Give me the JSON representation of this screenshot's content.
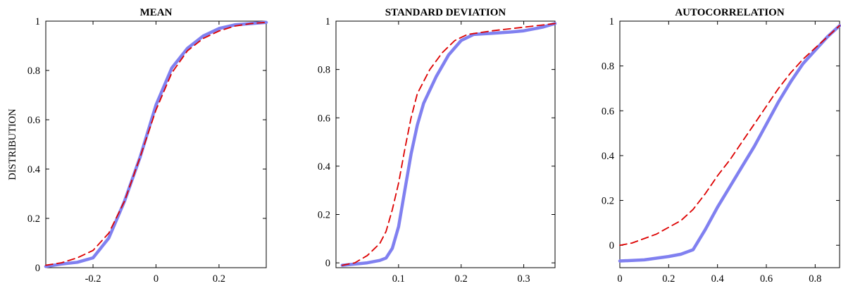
{
  "chart_data": [
    {
      "type": "line",
      "title": "MEAN",
      "xlabel": "",
      "ylabel": "DISTRIBUTION",
      "xlim": [
        -0.35,
        0.35
      ],
      "ylim": [
        0,
        1
      ],
      "xticks": [
        -0.2,
        0,
        0.2
      ],
      "xtick_labels": [
        "-0.2",
        "0",
        "0.2"
      ],
      "yticks": [
        0,
        0.2,
        0.4,
        0.6,
        0.8,
        1
      ],
      "ytick_labels": [
        "0",
        "0.2",
        "0.4",
        "0.6",
        "0.8",
        "1"
      ],
      "grid": false,
      "series": [
        {
          "style": "solid-thick",
          "color": "#8080f0",
          "points": [
            [
              -0.35,
              0.005
            ],
            [
              -0.3,
              0.015
            ],
            [
              -0.25,
              0.022
            ],
            [
              -0.2,
              0.04
            ],
            [
              -0.15,
              0.12
            ],
            [
              -0.1,
              0.27
            ],
            [
              -0.05,
              0.45
            ],
            [
              0,
              0.66
            ],
            [
              0.05,
              0.81
            ],
            [
              0.1,
              0.89
            ],
            [
              0.15,
              0.94
            ],
            [
              0.2,
              0.97
            ],
            [
              0.25,
              0.985
            ],
            [
              0.3,
              0.99
            ],
            [
              0.35,
              0.995
            ]
          ]
        },
        {
          "style": "dashed",
          "color": "#dd0000",
          "points": [
            [
              -0.35,
              0.01
            ],
            [
              -0.3,
              0.02
            ],
            [
              -0.25,
              0.04
            ],
            [
              -0.2,
              0.07
            ],
            [
              -0.15,
              0.14
            ],
            [
              -0.1,
              0.27
            ],
            [
              -0.05,
              0.45
            ],
            [
              0,
              0.64
            ],
            [
              0.05,
              0.79
            ],
            [
              0.1,
              0.88
            ],
            [
              0.15,
              0.93
            ],
            [
              0.2,
              0.96
            ],
            [
              0.25,
              0.98
            ],
            [
              0.3,
              0.99
            ],
            [
              0.35,
              0.995
            ]
          ]
        }
      ]
    },
    {
      "type": "line",
      "title": "STANDARD DEVIATION",
      "xlabel": "",
      "ylabel": "",
      "xlim": [
        0,
        0.35
      ],
      "ylim": [
        -0.02,
        1
      ],
      "xticks": [
        0.1,
        0.2,
        0.3
      ],
      "xtick_labels": [
        "0.1",
        "0.2",
        "0.3"
      ],
      "yticks": [
        0,
        0.2,
        0.4,
        0.6,
        0.8,
        1
      ],
      "ytick_labels": [
        "0",
        "0.2",
        "0.4",
        "0.6",
        "0.8",
        "1"
      ],
      "grid": false,
      "series": [
        {
          "style": "solid-thick",
          "color": "#8080f0",
          "points": [
            [
              0.01,
              -0.01
            ],
            [
              0.03,
              -0.005
            ],
            [
              0.05,
              0.0
            ],
            [
              0.07,
              0.01
            ],
            [
              0.08,
              0.02
            ],
            [
              0.09,
              0.06
            ],
            [
              0.1,
              0.15
            ],
            [
              0.11,
              0.3
            ],
            [
              0.12,
              0.45
            ],
            [
              0.13,
              0.57
            ],
            [
              0.14,
              0.66
            ],
            [
              0.16,
              0.77
            ],
            [
              0.18,
              0.86
            ],
            [
              0.2,
              0.92
            ],
            [
              0.22,
              0.945
            ],
            [
              0.25,
              0.95
            ],
            [
              0.28,
              0.955
            ],
            [
              0.3,
              0.96
            ],
            [
              0.33,
              0.975
            ],
            [
              0.35,
              0.99
            ]
          ]
        },
        {
          "style": "dashed",
          "color": "#dd0000",
          "points": [
            [
              0.01,
              -0.01
            ],
            [
              0.03,
              0.0
            ],
            [
              0.05,
              0.03
            ],
            [
              0.07,
              0.08
            ],
            [
              0.08,
              0.13
            ],
            [
              0.09,
              0.22
            ],
            [
              0.1,
              0.33
            ],
            [
              0.11,
              0.47
            ],
            [
              0.12,
              0.6
            ],
            [
              0.13,
              0.7
            ],
            [
              0.15,
              0.8
            ],
            [
              0.17,
              0.87
            ],
            [
              0.19,
              0.92
            ],
            [
              0.21,
              0.945
            ],
            [
              0.25,
              0.96
            ],
            [
              0.3,
              0.975
            ],
            [
              0.35,
              0.99
            ]
          ]
        }
      ]
    },
    {
      "type": "line",
      "title": "AUTOCORRELATION",
      "xlabel": "",
      "ylabel": "",
      "xlim": [
        0,
        0.9
      ],
      "ylim": [
        -0.1,
        1
      ],
      "xticks": [
        0,
        0.2,
        0.4,
        0.6,
        0.8
      ],
      "xtick_labels": [
        "0",
        "0.2",
        "0.4",
        "0.6",
        "0.8"
      ],
      "yticks": [
        0,
        0.2,
        0.4,
        0.6,
        0.8,
        1
      ],
      "ytick_labels": [
        "0",
        "0.2",
        "0.4",
        "0.6",
        "0.8",
        "1"
      ],
      "grid": false,
      "series": [
        {
          "style": "solid-thick",
          "color": "#8080f0",
          "points": [
            [
              0,
              -0.07
            ],
            [
              0.1,
              -0.065
            ],
            [
              0.2,
              -0.05
            ],
            [
              0.25,
              -0.04
            ],
            [
              0.3,
              -0.02
            ],
            [
              0.35,
              0.07
            ],
            [
              0.4,
              0.17
            ],
            [
              0.45,
              0.26
            ],
            [
              0.5,
              0.35
            ],
            [
              0.55,
              0.44
            ],
            [
              0.6,
              0.54
            ],
            [
              0.65,
              0.64
            ],
            [
              0.7,
              0.73
            ],
            [
              0.75,
              0.81
            ],
            [
              0.8,
              0.87
            ],
            [
              0.85,
              0.93
            ],
            [
              0.9,
              0.98
            ]
          ]
        },
        {
          "style": "dashed",
          "color": "#dd0000",
          "points": [
            [
              0,
              0.0
            ],
            [
              0.05,
              0.01
            ],
            [
              0.1,
              0.03
            ],
            [
              0.15,
              0.05
            ],
            [
              0.2,
              0.08
            ],
            [
              0.25,
              0.11
            ],
            [
              0.3,
              0.16
            ],
            [
              0.35,
              0.23
            ],
            [
              0.4,
              0.31
            ],
            [
              0.45,
              0.38
            ],
            [
              0.5,
              0.46
            ],
            [
              0.55,
              0.54
            ],
            [
              0.6,
              0.62
            ],
            [
              0.65,
              0.7
            ],
            [
              0.7,
              0.77
            ],
            [
              0.75,
              0.83
            ],
            [
              0.8,
              0.88
            ],
            [
              0.85,
              0.93
            ],
            [
              0.9,
              0.98
            ]
          ]
        }
      ]
    }
  ]
}
